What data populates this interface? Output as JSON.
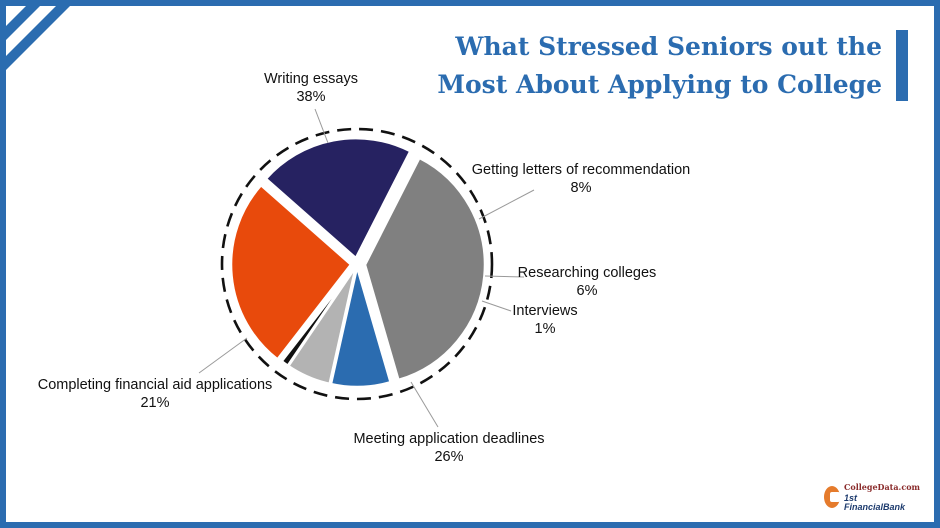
{
  "title": {
    "line1": "What Stressed Seniors out the",
    "line2": "Most About Applying to College"
  },
  "chart_data": {
    "type": "pie",
    "slices": [
      {
        "label": "Writing essays",
        "value": 38,
        "value_label": "38%",
        "color": "#808080"
      },
      {
        "label": "Getting letters of recommendation",
        "value": 8,
        "value_label": "8%",
        "color": "#2b6cb0"
      },
      {
        "label": "Researching colleges",
        "value": 6,
        "value_label": "6%",
        "color": "#b3b3b3"
      },
      {
        "label": "Interviews",
        "value": 1,
        "value_label": "1%",
        "color": "#111111"
      },
      {
        "label": "Meeting application deadlines",
        "value": 26,
        "value_label": "26%",
        "color": "#e84a0c"
      },
      {
        "label": "Completing financial aid applications",
        "value": 21,
        "value_label": "21%",
        "color": "#262261"
      }
    ],
    "legend": "none",
    "labels": "outside with leader lines"
  },
  "logo": {
    "line1": "CollegeData.com",
    "line2": "1st FinancialBank"
  },
  "colors": {
    "accent": "#2b6cb0",
    "frame": "#2b6cb0"
  }
}
